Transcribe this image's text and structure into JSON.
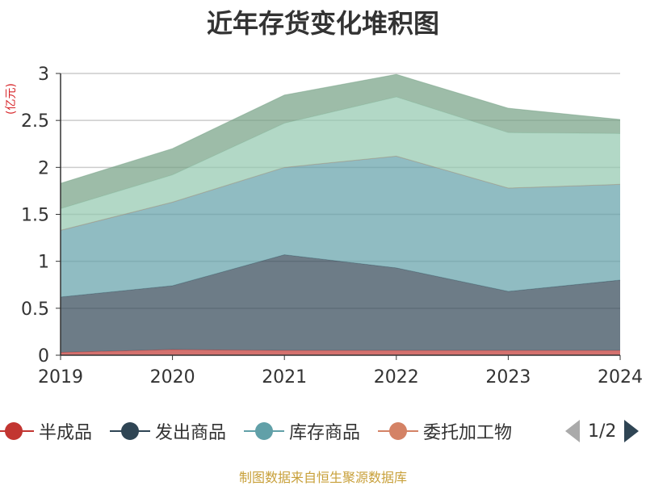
{
  "chart_data": {
    "type": "area",
    "stacked": true,
    "title": "近年存货变化堆积图",
    "ylabel": "(亿元)",
    "x": [
      "2019",
      "2020",
      "2021",
      "2022",
      "2023",
      "2024"
    ],
    "ylim": [
      0,
      3
    ],
    "yticks": [
      "0",
      "0.5",
      "1",
      "1.5",
      "2",
      "2.5",
      "3"
    ],
    "grid": true,
    "legend_position": "bottom",
    "series": [
      {
        "name": "半成品",
        "color": "#c23531",
        "values": [
          0.03,
          0.06,
          0.05,
          0.05,
          0.05,
          0.05
        ]
      },
      {
        "name": "发出商品",
        "color": "#2f4554",
        "values": [
          0.59,
          0.68,
          1.02,
          0.88,
          0.63,
          0.75
        ]
      },
      {
        "name": "库存商品",
        "color": "#61a0a8",
        "values": [
          0.71,
          0.89,
          0.93,
          1.19,
          1.1,
          1.02
        ]
      },
      {
        "name": "委托加工物",
        "color": "#d48265",
        "values": [
          0.0,
          0.0,
          0.0,
          0.0,
          0.0,
          0.0
        ]
      },
      {
        "name": "",
        "color": "#91c7ae",
        "values": [
          0.23,
          0.29,
          0.47,
          0.63,
          0.59,
          0.54
        ]
      },
      {
        "name": "",
        "color": "#749f83",
        "values": [
          0.27,
          0.28,
          0.3,
          0.24,
          0.26,
          0.15
        ]
      }
    ]
  },
  "legend": {
    "items": [
      {
        "label": "半成品",
        "color": "#c23531"
      },
      {
        "label": "发出商品",
        "color": "#2f4554"
      },
      {
        "label": "库存商品",
        "color": "#61a0a8"
      },
      {
        "label": "委托加工物",
        "color": "#d48265"
      }
    ],
    "page": "1/2"
  },
  "source": "制图数据来自恒生聚源数据库"
}
